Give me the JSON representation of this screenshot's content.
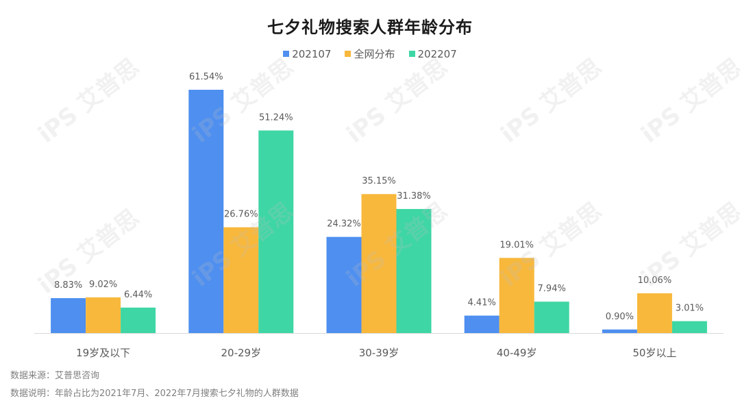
{
  "title": "七夕礼物搜索人群年龄分布",
  "colors": [
    "#4e8ff0",
    "#f8b83c",
    "#3ed6a4"
  ],
  "footnotes": {
    "source": "数据来源：艾普思咨询",
    "note": "数据说明：年龄占比为2021年7月、2022年7月搜索七夕礼物的人群数据"
  },
  "watermark": "iPS 艾普思",
  "chart_data": {
    "type": "bar",
    "title": "七夕礼物搜索人群年龄分布",
    "categories": [
      "19岁及以下",
      "20-29岁",
      "30-39岁",
      "40-49岁",
      "50岁以上"
    ],
    "series": [
      {
        "name": "202107",
        "values": [
          8.83,
          61.54,
          24.32,
          4.41,
          0.9
        ],
        "labels": [
          "8.83%",
          "61.54%",
          "24.32%",
          "4.41%",
          "0.90%"
        ]
      },
      {
        "name": "全网分布",
        "values": [
          9.02,
          26.76,
          35.15,
          19.01,
          10.06
        ],
        "labels": [
          "9.02%",
          "26.76%",
          "35.15%",
          "19.01%",
          "10.06%"
        ]
      },
      {
        "name": "202207",
        "values": [
          6.44,
          51.24,
          31.38,
          7.94,
          3.01
        ],
        "labels": [
          "6.44%",
          "51.24%",
          "31.38%",
          "7.94%",
          "3.01%"
        ]
      }
    ],
    "ylim": [
      0,
      61.54
    ],
    "grid": false,
    "legend": "top-center"
  }
}
